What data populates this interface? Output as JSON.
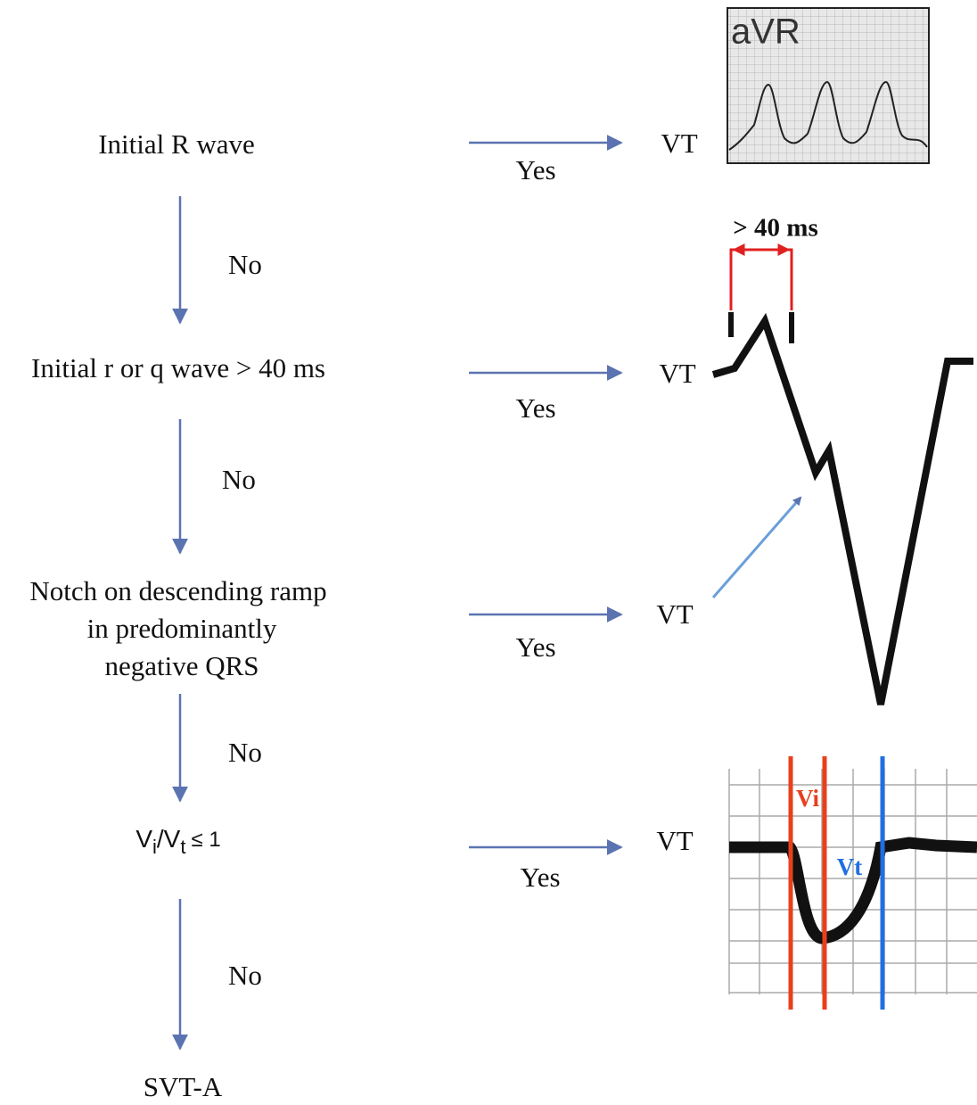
{
  "steps": [
    {
      "label": [
        "Initial R wave"
      ],
      "yes": "Yes",
      "result": "VT",
      "no": "No"
    },
    {
      "label": [
        "Initial r or q wave > 40 ms"
      ],
      "yes": "Yes",
      "result": "VT",
      "no": "No"
    },
    {
      "label": [
        "Notch on descending ramp",
        "in predominantly",
        "negative QRS"
      ],
      "yes": "Yes",
      "result": "VT",
      "no": "No"
    },
    {
      "ratio": {
        "v1": "V",
        "sub1": "i",
        "slash": "/V",
        "sub2": "t",
        "op": "≤ 1"
      },
      "yes": "Yes",
      "result": "VT",
      "no": "No"
    }
  ],
  "end": "SVT-A",
  "figures": {
    "avr_label": "aVR",
    "duration_label": "> 40 ms",
    "vi_label": "Vi",
    "vt_label": "Vt"
  }
}
